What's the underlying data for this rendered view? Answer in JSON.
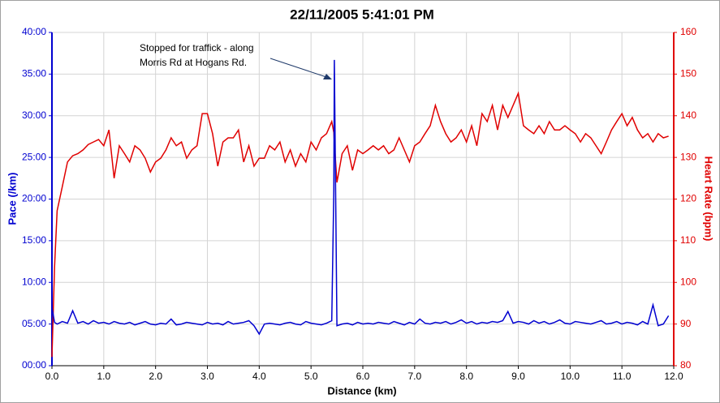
{
  "chart_data": {
    "type": "line",
    "title": "22/11/2005 5:41:01 PM",
    "xlabel": "Distance (km)",
    "ylabel": "Pace (/km)",
    "y2label": "Heart Rate (bpm)",
    "annotation": {
      "lines": [
        "Stopped for traffick - along",
        "Morris Rd at Hogans Rd."
      ]
    },
    "grid": true,
    "xlim": [
      0,
      12
    ],
    "xticks": [
      {
        "value": 0,
        "label": "0.0"
      },
      {
        "value": 1,
        "label": "1.0"
      },
      {
        "value": 2,
        "label": "2.0"
      },
      {
        "value": 3,
        "label": "3.0"
      },
      {
        "value": 4,
        "label": "4.0"
      },
      {
        "value": 5,
        "label": "5.0"
      },
      {
        "value": 6,
        "label": "6.0"
      },
      {
        "value": 7,
        "label": "7.0"
      },
      {
        "value": 8,
        "label": "8.0"
      },
      {
        "value": 9,
        "label": "9.0"
      },
      {
        "value": 10,
        "label": "10.0"
      },
      {
        "value": 11,
        "label": "11.0"
      },
      {
        "value": 12,
        "label": "12.0"
      }
    ],
    "ylim": [
      0,
      40
    ],
    "yticks": [
      {
        "value": 0,
        "label": "00:00"
      },
      {
        "value": 5,
        "label": "05:00"
      },
      {
        "value": 10,
        "label": "10:00"
      },
      {
        "value": 15,
        "label": "15:00"
      },
      {
        "value": 20,
        "label": "20:00"
      },
      {
        "value": 25,
        "label": "25:00"
      },
      {
        "value": 30,
        "label": "30:00"
      },
      {
        "value": 35,
        "label": "35:00"
      },
      {
        "value": 40,
        "label": "40:00"
      }
    ],
    "y2lim": [
      80,
      160
    ],
    "y2ticks": [
      80,
      90,
      100,
      110,
      120,
      130,
      140,
      150,
      160
    ],
    "x": [
      0,
      0.05,
      0.1,
      0.2,
      0.3,
      0.4,
      0.5,
      0.6,
      0.7,
      0.8,
      0.9,
      1.0,
      1.1,
      1.2,
      1.3,
      1.4,
      1.5,
      1.6,
      1.7,
      1.8,
      1.9,
      2.0,
      2.1,
      2.2,
      2.3,
      2.4,
      2.5,
      2.6,
      2.7,
      2.8,
      2.9,
      3.0,
      3.1,
      3.2,
      3.3,
      3.4,
      3.5,
      3.6,
      3.7,
      3.8,
      3.9,
      4.0,
      4.1,
      4.2,
      4.3,
      4.4,
      4.5,
      4.6,
      4.7,
      4.8,
      4.9,
      5.0,
      5.1,
      5.2,
      5.3,
      5.4,
      5.44,
      5.45,
      5.5,
      5.6,
      5.7,
      5.8,
      5.9,
      6.0,
      6.1,
      6.2,
      6.3,
      6.4,
      6.5,
      6.6,
      6.7,
      6.8,
      6.9,
      7.0,
      7.1,
      7.2,
      7.3,
      7.4,
      7.5,
      7.6,
      7.7,
      7.8,
      7.9,
      8.0,
      8.1,
      8.2,
      8.3,
      8.4,
      8.5,
      8.6,
      8.7,
      8.8,
      8.9,
      9.0,
      9.1,
      9.2,
      9.3,
      9.4,
      9.5,
      9.6,
      9.7,
      9.8,
      9.9,
      10.0,
      10.1,
      10.2,
      10.3,
      10.4,
      10.5,
      10.6,
      10.7,
      10.8,
      10.9,
      11.0,
      11.1,
      11.2,
      11.3,
      11.4,
      11.5,
      11.6,
      11.7,
      11.8,
      11.9
    ],
    "series": [
      {
        "name": "Pace",
        "color": "#0000d0",
        "axis": "y",
        "values": [
          7.0,
          5.2,
          5.0,
          5.3,
          5.1,
          6.6,
          5.1,
          5.3,
          5.0,
          5.4,
          5.1,
          5.2,
          5.0,
          5.3,
          5.1,
          5.0,
          5.2,
          4.9,
          5.1,
          5.3,
          5.0,
          4.9,
          5.1,
          5.0,
          5.6,
          4.9,
          5.0,
          5.2,
          5.1,
          5.0,
          4.9,
          5.2,
          5.0,
          5.1,
          4.9,
          5.3,
          5.0,
          5.1,
          5.2,
          5.4,
          4.8,
          3.8,
          5.0,
          5.1,
          5.0,
          4.9,
          5.1,
          5.2,
          5.0,
          4.9,
          5.3,
          5.1,
          5.0,
          4.9,
          5.1,
          5.4,
          21.0,
          36.7,
          4.8,
          5.0,
          5.1,
          4.9,
          5.2,
          5.0,
          5.1,
          5.0,
          5.2,
          5.1,
          5.0,
          5.3,
          5.1,
          4.9,
          5.2,
          5.0,
          5.6,
          5.1,
          5.0,
          5.2,
          5.1,
          5.3,
          5.0,
          5.2,
          5.5,
          5.1,
          5.3,
          5.0,
          5.2,
          5.1,
          5.3,
          5.2,
          5.4,
          6.5,
          5.1,
          5.3,
          5.2,
          5.0,
          5.4,
          5.1,
          5.3,
          5.0,
          5.2,
          5.5,
          5.1,
          5.0,
          5.3,
          5.2,
          5.1,
          5.0,
          5.2,
          5.4,
          5.0,
          5.1,
          5.3,
          5.0,
          5.2,
          5.1,
          4.9,
          5.3,
          5.0,
          7.3,
          4.8,
          5.0,
          6.0
        ]
      },
      {
        "name": "Heart Rate",
        "color": "#e00000",
        "axis": "y2",
        "values": [
          82.1,
          103.6,
          117.2,
          123.0,
          128.9,
          130.4,
          130.9,
          131.8,
          133.1,
          133.7,
          134.3,
          132.8,
          136.6,
          125.0,
          132.8,
          130.9,
          128.9,
          132.8,
          131.8,
          129.8,
          126.5,
          128.9,
          129.8,
          131.8,
          134.7,
          132.8,
          133.7,
          129.8,
          131.8,
          132.8,
          140.5,
          140.5,
          135.7,
          127.9,
          133.7,
          134.7,
          134.7,
          136.6,
          128.9,
          132.8,
          127.9,
          129.8,
          129.8,
          132.8,
          131.8,
          133.7,
          128.9,
          131.8,
          127.9,
          130.9,
          128.9,
          133.7,
          131.8,
          134.7,
          135.7,
          138.6,
          136.0,
          133.7,
          124.0,
          130.9,
          132.8,
          126.9,
          131.8,
          130.9,
          131.8,
          132.8,
          131.8,
          132.8,
          130.9,
          131.8,
          134.7,
          131.8,
          128.9,
          132.8,
          133.7,
          135.7,
          137.6,
          142.5,
          138.6,
          135.7,
          133.7,
          134.7,
          136.6,
          133.7,
          137.6,
          132.8,
          140.5,
          138.6,
          142.5,
          136.6,
          142.5,
          139.6,
          142.5,
          145.4,
          137.6,
          136.6,
          135.7,
          137.6,
          135.7,
          138.6,
          136.6,
          136.6,
          137.6,
          136.6,
          135.7,
          133.7,
          135.7,
          134.7,
          132.8,
          130.9,
          133.7,
          136.6,
          138.6,
          140.5,
          137.6,
          139.6,
          136.6,
          134.7,
          135.7,
          133.7,
          135.7,
          134.7,
          135.1
        ]
      }
    ]
  }
}
